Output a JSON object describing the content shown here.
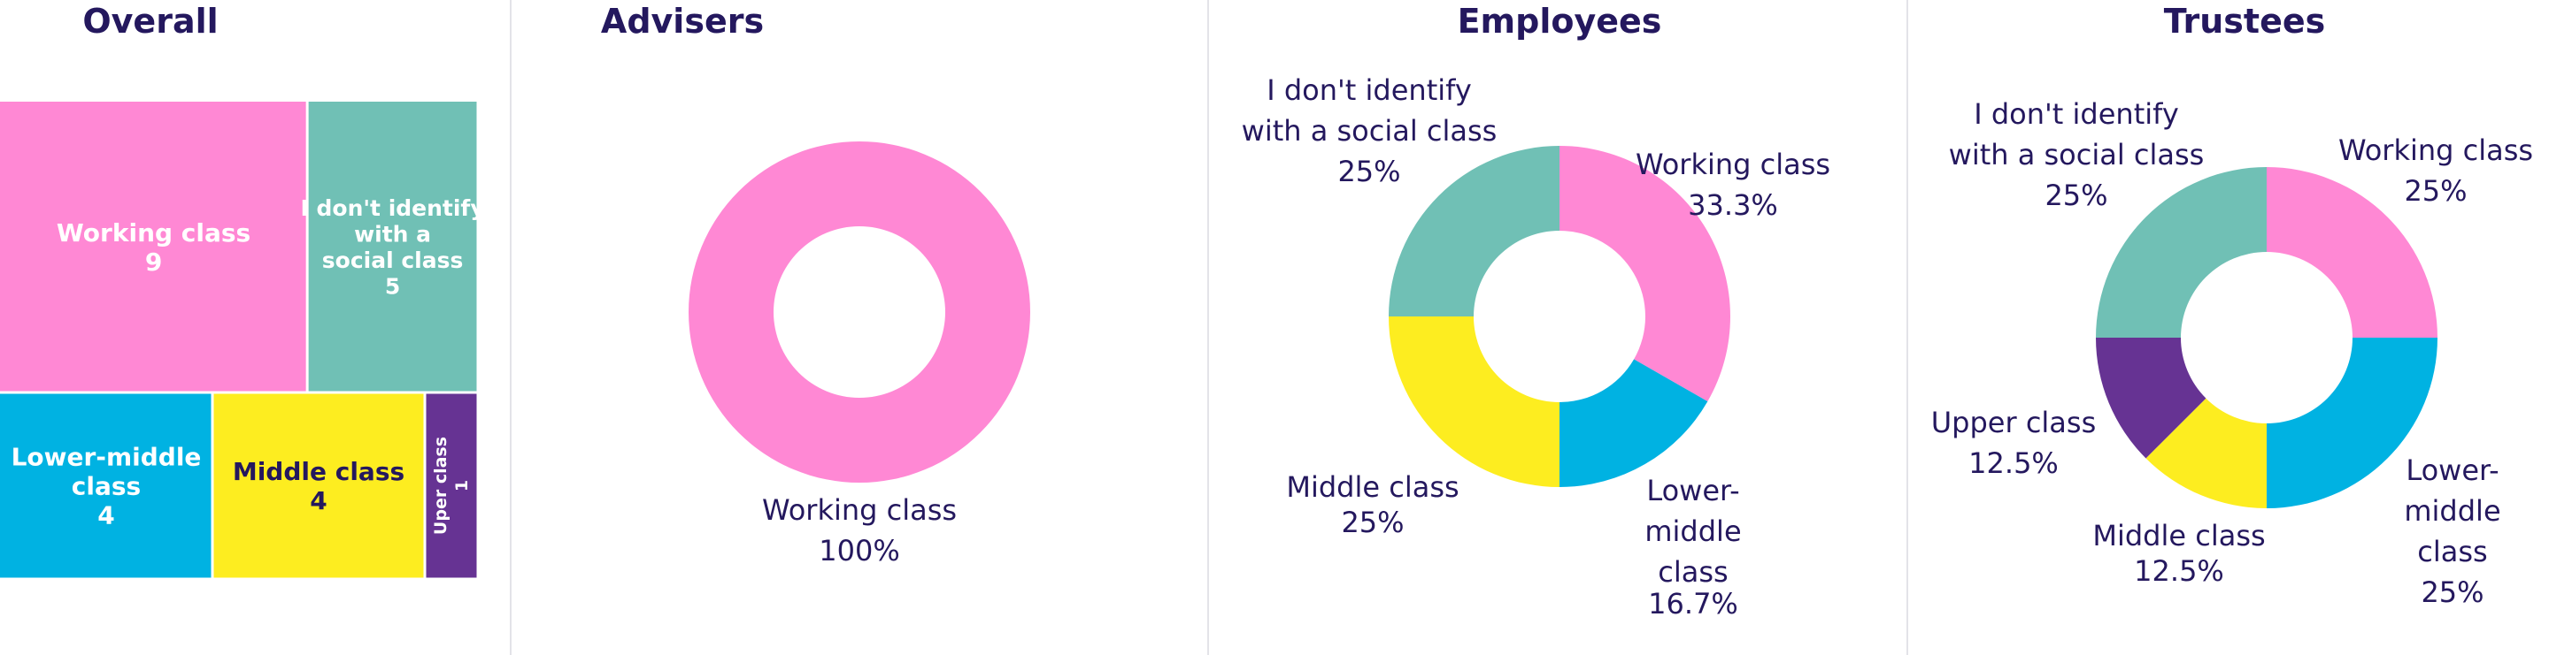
{
  "colors": {
    "working": "#ff88d4",
    "noid": "#70c0b5",
    "lower": "#00b2e2",
    "middle": "#fded20",
    "upper": "#663393",
    "text": "#24185e",
    "white": "#ffffff"
  },
  "panels": {
    "overall": {
      "title": "Overall"
    },
    "advisers": {
      "title": "Advisers"
    },
    "employees": {
      "title": "Employees"
    },
    "trustees": {
      "title": "Trustees"
    }
  },
  "chart_data": [
    {
      "type": "treemap",
      "title": "Overall",
      "items": [
        {
          "name": "Working class",
          "value": 9,
          "value_label": "9",
          "color": "#ff88d4",
          "text_color": "#ffffff"
        },
        {
          "name": "I don't identify with a social class",
          "value": 5,
          "value_label": "5",
          "color": "#70c0b5",
          "text_color": "#ffffff"
        },
        {
          "name": "Lower-middle class",
          "value": 4,
          "value_label": "4",
          "color": "#00b2e2",
          "text_color": "#ffffff"
        },
        {
          "name": "Middle class",
          "value": 4,
          "value_label": "4",
          "color": "#fded20",
          "text_color": "#24185e"
        },
        {
          "name": "Uper class",
          "value": 1,
          "value_label": "1",
          "color": "#663393",
          "text_color": "#ffffff"
        }
      ]
    },
    {
      "type": "pie",
      "title": "Advisers",
      "slices": [
        {
          "name": "Working class",
          "value": 100,
          "value_label": "100%",
          "color": "#ff88d4"
        }
      ]
    },
    {
      "type": "pie",
      "title": "Employees",
      "slices": [
        {
          "name": "Working class",
          "value": 33.3,
          "value_label": "33.3%",
          "color": "#ff88d4"
        },
        {
          "name": "Lower-middle class",
          "value": 16.7,
          "value_label": "16.7%",
          "color": "#00b2e2"
        },
        {
          "name": "Middle class",
          "value": 25,
          "value_label": "25%",
          "color": "#fded20"
        },
        {
          "name": "I don't identify with a social class",
          "value": 25,
          "value_label": "25%",
          "color": "#70c0b5"
        }
      ]
    },
    {
      "type": "pie",
      "title": "Trustees",
      "slices": [
        {
          "name": "Working class",
          "value": 25,
          "value_label": "25%",
          "color": "#ff88d4"
        },
        {
          "name": "Lower-middle class",
          "value": 25,
          "value_label": "25%",
          "color": "#00b2e2"
        },
        {
          "name": "Middle class",
          "value": 12.5,
          "value_label": "12.5%",
          "color": "#fded20"
        },
        {
          "name": "Upper class",
          "value": 12.5,
          "value_label": "12.5%",
          "color": "#663393"
        },
        {
          "name": "I don't identify with a social class",
          "value": 25,
          "value_label": "25%",
          "color": "#70c0b5"
        }
      ]
    }
  ]
}
